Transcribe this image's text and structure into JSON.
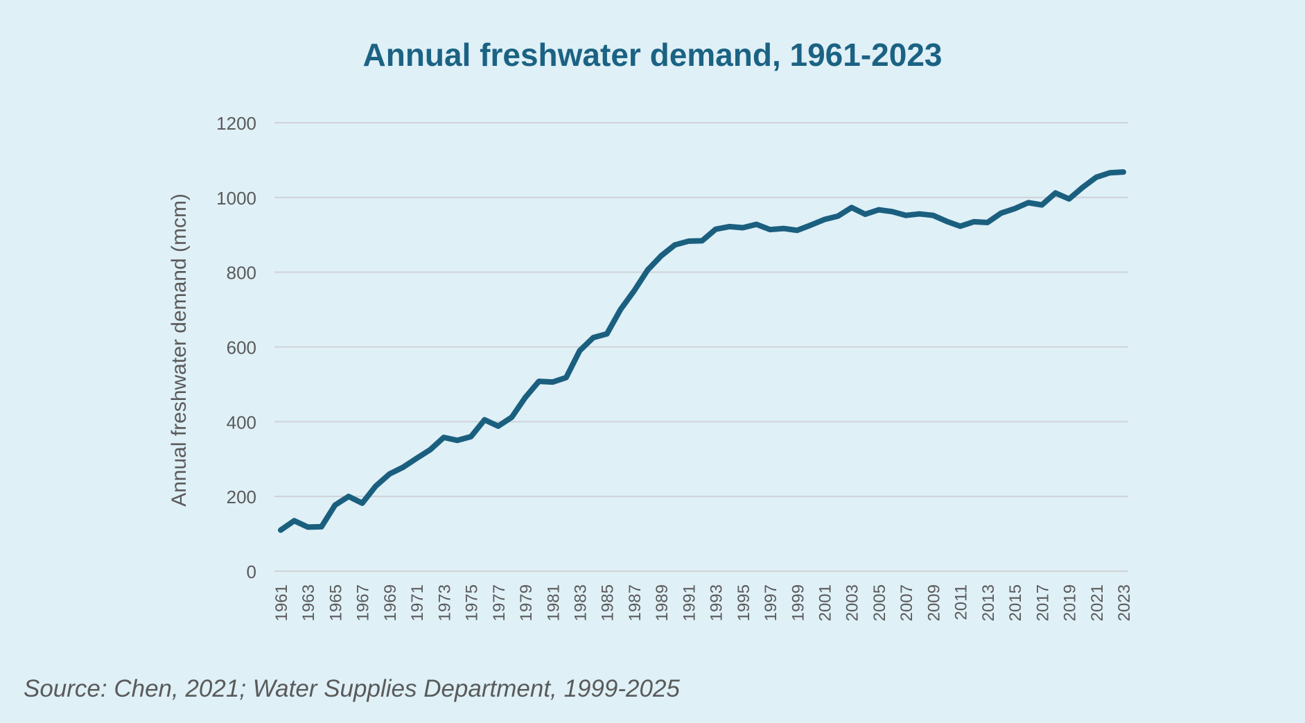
{
  "chart_data": {
    "type": "line",
    "title": "Annual freshwater demand, 1961-2023",
    "xlabel": "",
    "ylabel": "Annual freshwater demand (mcm)",
    "ylim": [
      0,
      1200
    ],
    "yticks": [
      0,
      200,
      400,
      600,
      800,
      1000,
      1200
    ],
    "x": [
      1961,
      1962,
      1963,
      1964,
      1965,
      1966,
      1967,
      1968,
      1969,
      1970,
      1971,
      1972,
      1973,
      1974,
      1975,
      1976,
      1977,
      1978,
      1979,
      1980,
      1981,
      1982,
      1983,
      1984,
      1985,
      1986,
      1987,
      1988,
      1989,
      1990,
      1991,
      1992,
      1993,
      1994,
      1995,
      1996,
      1997,
      1998,
      1999,
      2000,
      2001,
      2002,
      2003,
      2004,
      2005,
      2006,
      2007,
      2008,
      2009,
      2010,
      2011,
      2012,
      2013,
      2014,
      2015,
      2016,
      2017,
      2018,
      2019,
      2020,
      2021,
      2022,
      2023
    ],
    "xtick_labels": [
      "1961",
      "1963",
      "1965",
      "1967",
      "1969",
      "1971",
      "1973",
      "1975",
      "1977",
      "1979",
      "1981",
      "1983",
      "1985",
      "1987",
      "1989",
      "1991",
      "1993",
      "1995",
      "1997",
      "1999",
      "2001",
      "2003",
      "2005",
      "2007",
      "2009",
      "2011",
      "2013",
      "2015",
      "2017",
      "2019",
      "2021",
      "2023"
    ],
    "series": [
      {
        "name": "",
        "values": [
          110,
          135,
          118,
          119,
          177,
          200,
          182,
          228,
          260,
          278,
          302,
          325,
          358,
          350,
          360,
          405,
          388,
          412,
          465,
          508,
          506,
          518,
          590,
          625,
          635,
          700,
          750,
          806,
          844,
          873,
          883,
          884,
          915,
          922,
          919,
          928,
          914,
          917,
          912,
          926,
          941,
          950,
          973,
          955,
          967,
          962,
          952,
          956,
          952,
          936,
          923,
          935,
          933,
          958,
          970,
          986,
          980,
          1012,
          996,
          1027,
          1054,
          1066,
          1068
        ]
      }
    ],
    "grid": true,
    "legend": "none",
    "colors": {
      "line": "#1b5f7f",
      "grid": "#cfd3d6",
      "title": "#1b6283",
      "background": "#dff0f7",
      "text": "#5a5a5a"
    }
  },
  "source_note": "Source: Chen, 2021; Water Supplies Department, 1999-2025"
}
